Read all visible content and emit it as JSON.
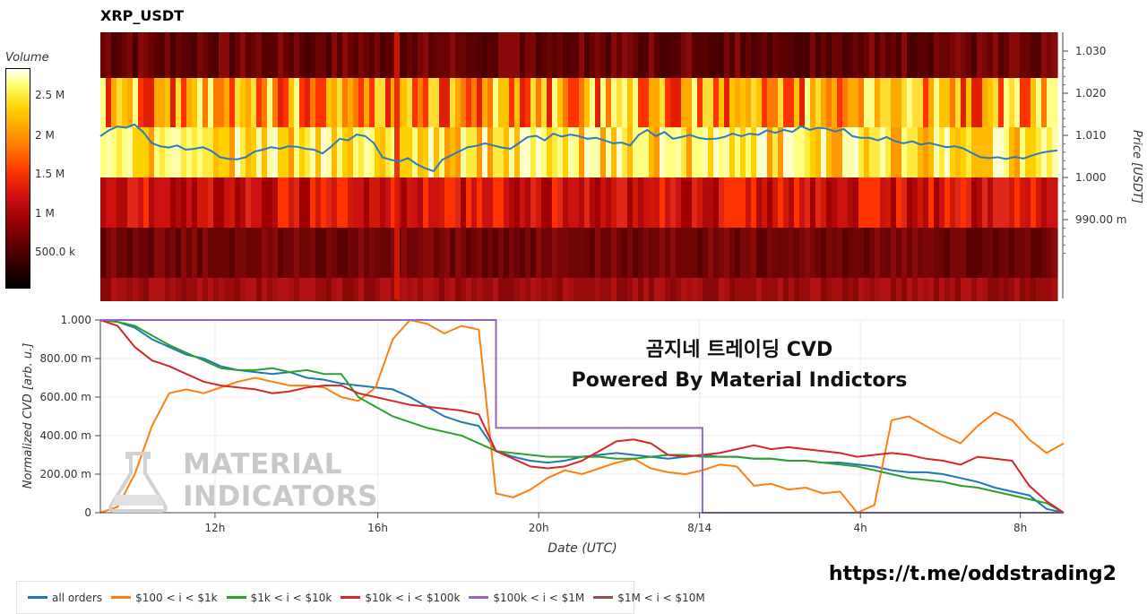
{
  "heatmap": {
    "title": "XRP_USDT",
    "colorbar": {
      "title": "Volume",
      "ticks": [
        "2.5 M",
        "2 M",
        "1.5 M",
        "1 M",
        "500.0 k"
      ]
    },
    "y_axis": {
      "label": "Price [USDT]",
      "ticks": [
        "1.030",
        "1.020",
        "1.010",
        "1.000",
        "990.00 m"
      ]
    }
  },
  "overlay": {
    "line1": "곰지네 트레이딩 CVD",
    "line2": "Powered By Material Indictors"
  },
  "watermark": {
    "line1": "MATERIAL",
    "line2": "INDICATORS"
  },
  "link": "https://t.me/oddstrading2",
  "chart_data": [
    {
      "type": "heatmap",
      "title": "XRP_USDT",
      "ylabel": "Price [USDT]",
      "y_ticks": [
        "1.030",
        "1.020",
        "1.010",
        "1.000",
        "990.00 m"
      ],
      "colorbar_label": "Volume",
      "colorbar_ticks": [
        "2.5 M",
        "2 M",
        "1.5 M",
        "1 M",
        "500.0 k"
      ],
      "price_line": {
        "color": "#2b7bbf",
        "values": [
          1.0098,
          1.0112,
          1.0121,
          1.0118,
          1.0126,
          1.0108,
          1.0082,
          1.0074,
          1.0071,
          1.0076,
          1.0066,
          1.0068,
          1.0072,
          1.0063,
          1.0048,
          1.0044,
          1.0043,
          1.0048,
          1.0061,
          1.0066,
          1.0072,
          1.0068,
          1.0074,
          1.0073,
          1.0068,
          1.0066,
          1.0057,
          1.0073,
          1.0092,
          1.0088,
          1.0102,
          1.0098,
          1.0082,
          1.0048,
          1.0042,
          1.0038,
          1.0046,
          1.0032,
          1.0022,
          1.0015,
          1.0042,
          1.0052,
          1.0062,
          1.0072,
          1.0075,
          1.0081,
          1.0076,
          1.0071,
          1.0068,
          1.0082,
          1.0096,
          1.0099,
          1.0088,
          1.0104,
          1.0097,
          1.0102,
          1.0098,
          1.0092,
          1.0094,
          1.0088,
          1.0081,
          1.0083,
          1.0076,
          1.0101,
          1.0113,
          1.0098,
          1.0108,
          1.0092,
          1.0096,
          1.0101,
          1.0094,
          1.0091,
          1.0092,
          1.0096,
          1.0104,
          1.0098,
          1.0104,
          1.0101,
          1.0112,
          1.0106,
          1.0113,
          1.0108,
          1.0122,
          1.0113,
          1.0118,
          1.0116,
          1.0109,
          1.0115,
          1.0098,
          1.0094,
          1.0094,
          1.0088,
          1.0096,
          1.0086,
          1.0081,
          1.0086,
          1.0078,
          1.0082,
          1.0077,
          1.0072,
          1.0074,
          1.0069,
          1.0058,
          1.0048,
          1.0046,
          1.0048,
          1.0044,
          1.0049,
          1.0045,
          1.0052,
          1.0058,
          1.0062,
          1.0064
        ]
      }
    },
    {
      "type": "line",
      "xlabel": "Date (UTC)",
      "ylabel": "Normalized CVD [arb. u.]",
      "x_ticks": [
        "12h",
        "16h",
        "20h",
        "8/14",
        "4h",
        "8h"
      ],
      "y_ticks": [
        "0",
        "200.00 m",
        "400.00 m",
        "600.00 m",
        "800.00 m",
        "1.000"
      ],
      "ylim": [
        0,
        1
      ],
      "legend_position": "bottom-left",
      "series": [
        {
          "name": "all orders",
          "color": "#1f77b4",
          "values": [
            1.0,
            0.99,
            0.96,
            0.9,
            0.86,
            0.82,
            0.8,
            0.76,
            0.74,
            0.73,
            0.72,
            0.73,
            0.7,
            0.69,
            0.67,
            0.66,
            0.65,
            0.64,
            0.6,
            0.55,
            0.5,
            0.47,
            0.45,
            0.32,
            0.29,
            0.27,
            0.26,
            0.27,
            0.29,
            0.3,
            0.31,
            0.3,
            0.29,
            0.28,
            0.29,
            0.3,
            0.29,
            0.29,
            0.28,
            0.28,
            0.27,
            0.27,
            0.26,
            0.26,
            0.25,
            0.24,
            0.22,
            0.21,
            0.21,
            0.2,
            0.18,
            0.16,
            0.13,
            0.11,
            0.09,
            0.02,
            0.0
          ]
        },
        {
          "name": "$100 < i < $1k",
          "color": "#ff7f0e",
          "values": [
            0.0,
            0.03,
            0.2,
            0.45,
            0.62,
            0.64,
            0.62,
            0.65,
            0.68,
            0.7,
            0.68,
            0.66,
            0.66,
            0.65,
            0.6,
            0.58,
            0.65,
            0.9,
            1.0,
            0.98,
            0.93,
            0.97,
            0.95,
            0.1,
            0.08,
            0.12,
            0.18,
            0.22,
            0.2,
            0.23,
            0.26,
            0.28,
            0.23,
            0.21,
            0.2,
            0.22,
            0.25,
            0.24,
            0.14,
            0.15,
            0.12,
            0.13,
            0.1,
            0.11,
            0.0,
            0.04,
            0.48,
            0.5,
            0.45,
            0.4,
            0.36,
            0.45,
            0.52,
            0.48,
            0.38,
            0.31,
            0.36
          ]
        },
        {
          "name": "$1k < i < $10k",
          "color": "#2ca02c",
          "values": [
            1.0,
            0.99,
            0.97,
            0.92,
            0.87,
            0.83,
            0.79,
            0.75,
            0.74,
            0.74,
            0.75,
            0.73,
            0.74,
            0.72,
            0.72,
            0.6,
            0.55,
            0.5,
            0.47,
            0.44,
            0.42,
            0.4,
            0.36,
            0.32,
            0.31,
            0.3,
            0.29,
            0.29,
            0.29,
            0.29,
            0.28,
            0.28,
            0.29,
            0.3,
            0.3,
            0.29,
            0.29,
            0.29,
            0.28,
            0.28,
            0.27,
            0.27,
            0.26,
            0.25,
            0.24,
            0.22,
            0.2,
            0.18,
            0.17,
            0.16,
            0.14,
            0.13,
            0.11,
            0.09,
            0.07,
            0.05,
            0.0
          ]
        },
        {
          "name": "$10k < i < $100k",
          "color": "#d62728",
          "values": [
            1.0,
            0.97,
            0.86,
            0.79,
            0.76,
            0.72,
            0.68,
            0.66,
            0.65,
            0.64,
            0.62,
            0.63,
            0.65,
            0.66,
            0.66,
            0.62,
            0.6,
            0.58,
            0.56,
            0.55,
            0.54,
            0.53,
            0.51,
            0.32,
            0.28,
            0.24,
            0.23,
            0.24,
            0.27,
            0.32,
            0.37,
            0.38,
            0.36,
            0.3,
            0.29,
            0.3,
            0.31,
            0.33,
            0.35,
            0.33,
            0.34,
            0.33,
            0.32,
            0.31,
            0.29,
            0.3,
            0.31,
            0.3,
            0.28,
            0.27,
            0.25,
            0.29,
            0.28,
            0.27,
            0.14,
            0.06,
            0.0
          ]
        },
        {
          "name": "$100k < i < $1M",
          "color": "#9467bd",
          "values": [
            1.0,
            1.0,
            1.0,
            1.0,
            1.0,
            1.0,
            1.0,
            1.0,
            1.0,
            1.0,
            1.0,
            1.0,
            1.0,
            1.0,
            1.0,
            1.0,
            1.0,
            1.0,
            1.0,
            1.0,
            1.0,
            1.0,
            1.0,
            0.44,
            0.44,
            0.44,
            0.44,
            0.44,
            0.44,
            0.44,
            0.44,
            0.44,
            0.44,
            0.44,
            0.44,
            0.0,
            0.0,
            0.0,
            0.0,
            0.0,
            0.0,
            0.0,
            0.0,
            0.0,
            0.0,
            0.0,
            0.0,
            0.0,
            0.0,
            0.0,
            0.0,
            0.0,
            0.0,
            0.0,
            0.0,
            0.0,
            0.0
          ]
        },
        {
          "name": "$1M < i < $10M",
          "color": "#8c564b",
          "values": []
        }
      ]
    }
  ]
}
